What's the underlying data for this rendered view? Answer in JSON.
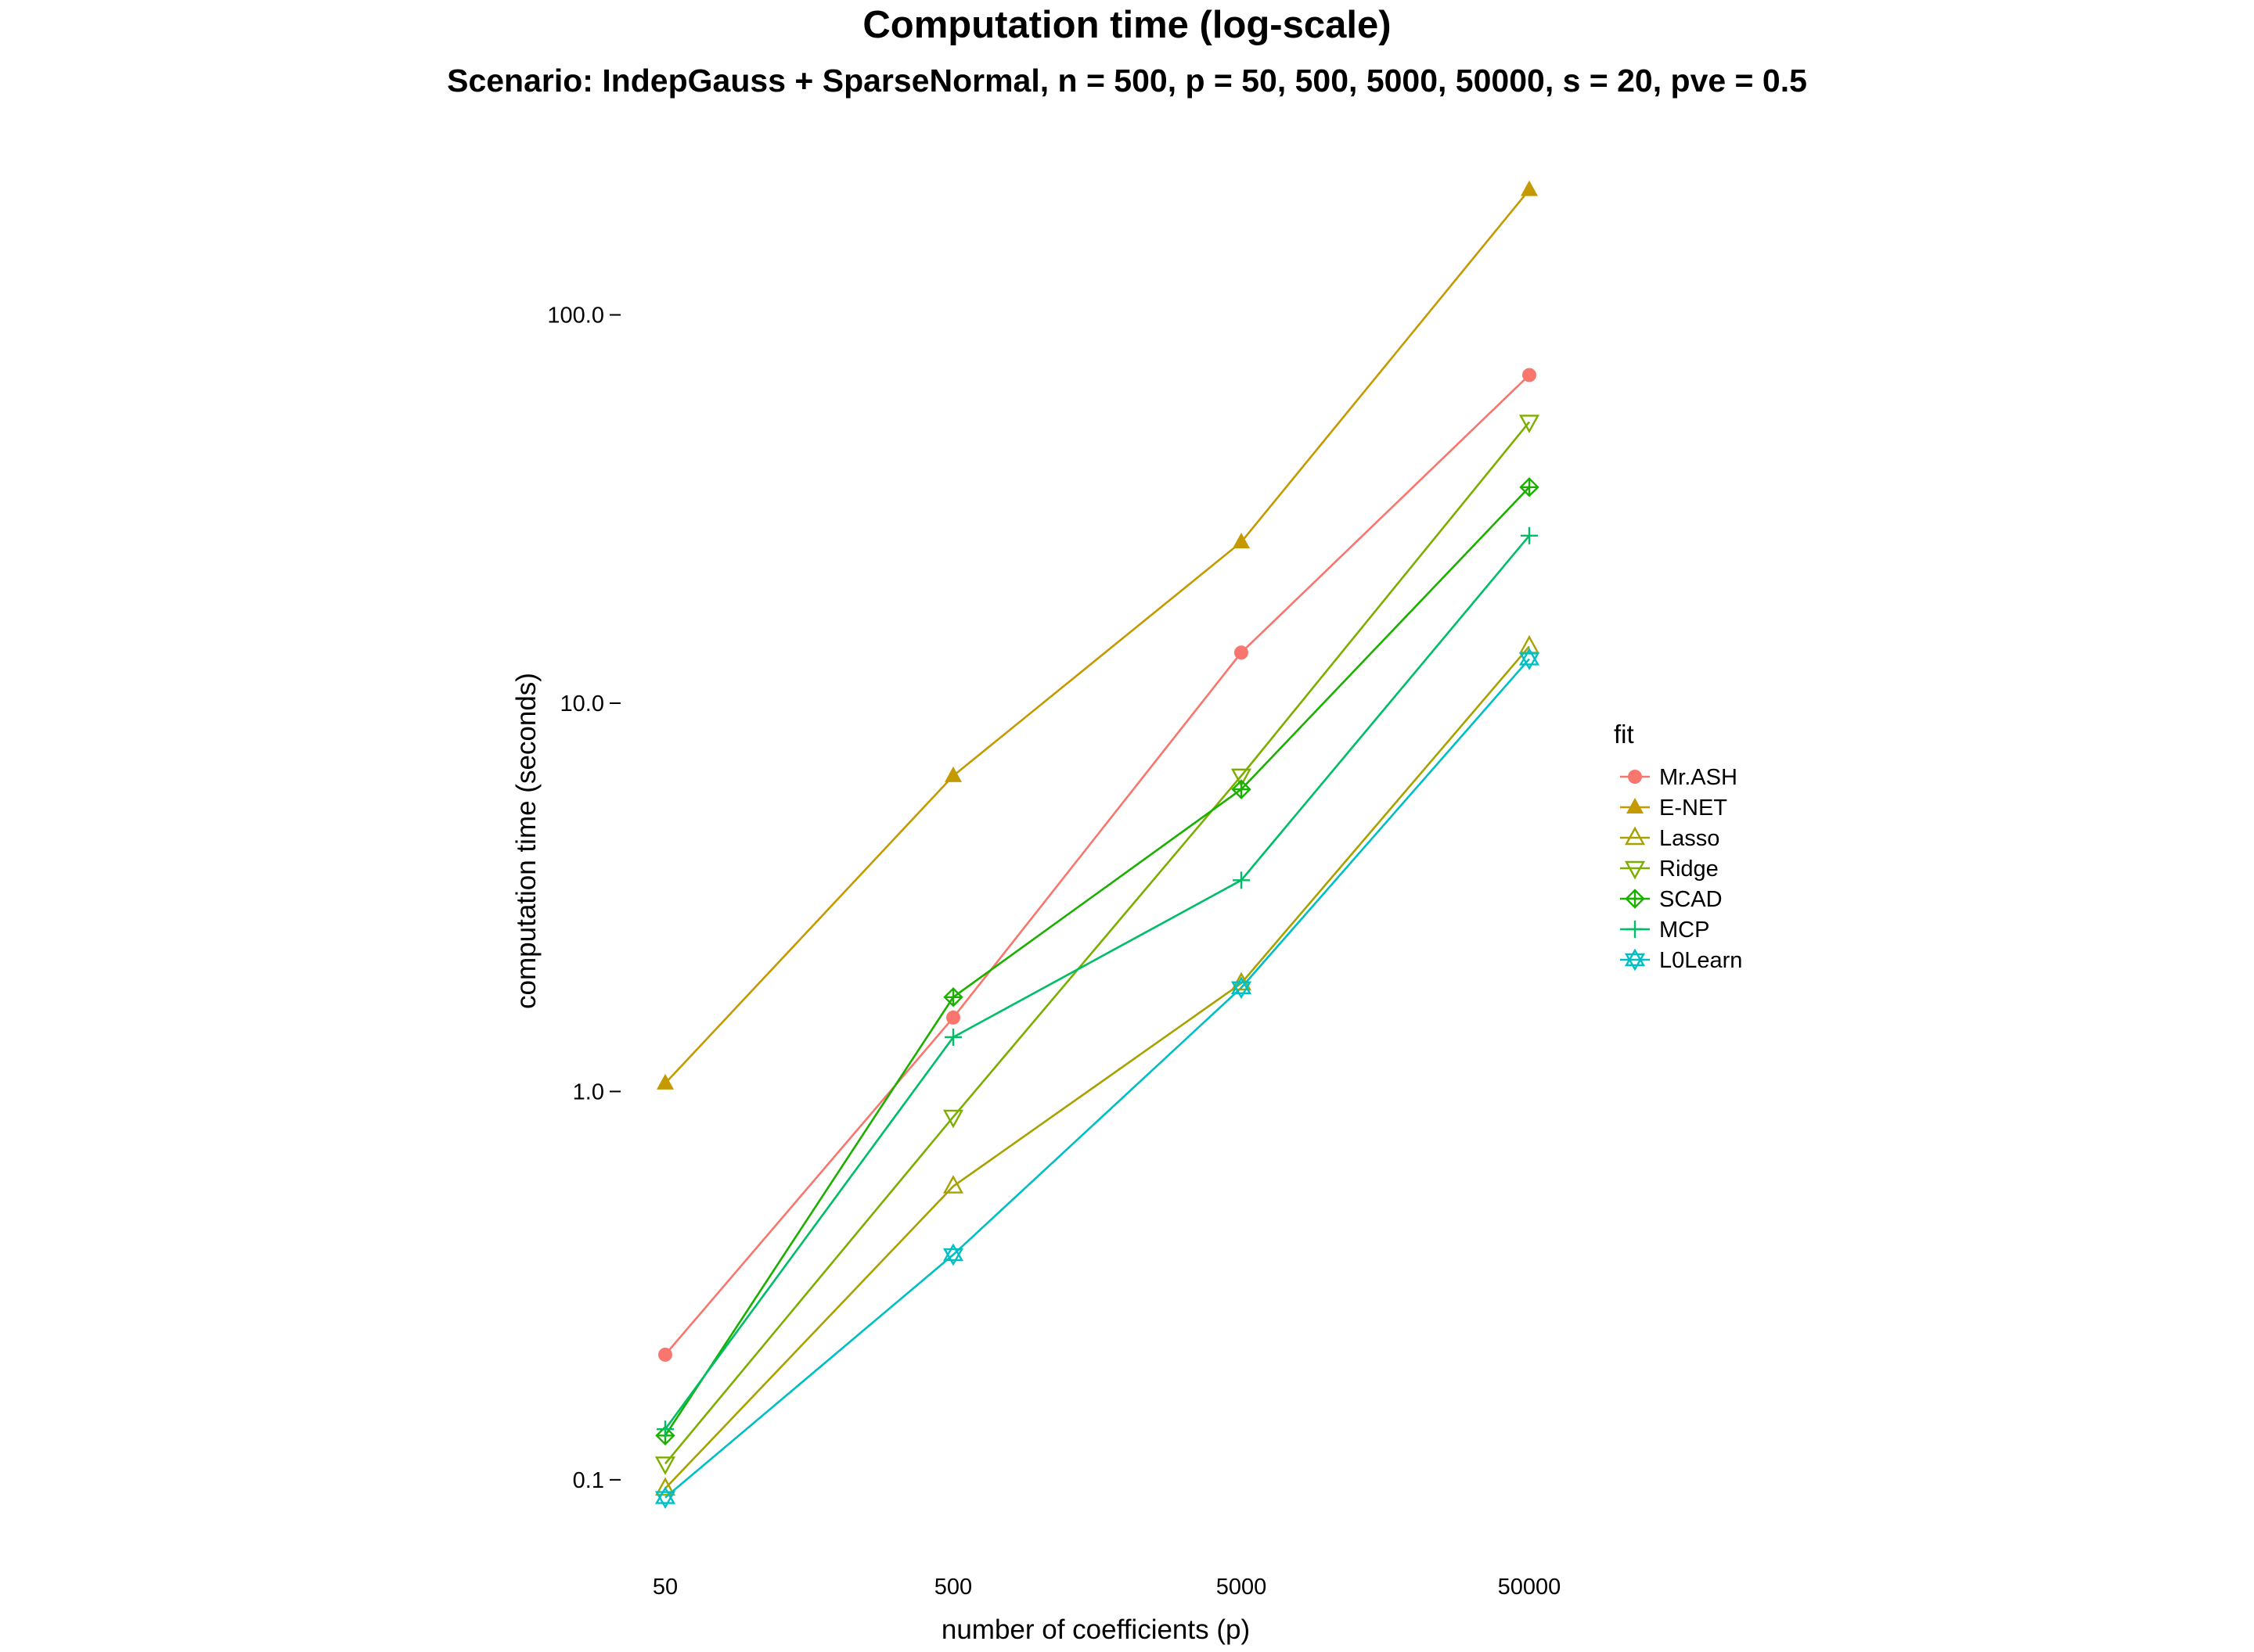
{
  "chart_data": {
    "type": "line",
    "title": "Computation time (log-scale)",
    "subtitle": "Scenario: IndepGauss + SparseNormal, n = 500, p = 50, 500, 5000, 50000, s = 20, pve = 0.5",
    "xlabel": "number of coefficients (p)",
    "ylabel": "computation time (seconds)",
    "x_scale": "log",
    "y_scale": "log",
    "x": [
      50,
      500,
      5000,
      50000
    ],
    "x_tick_labels": [
      "50",
      "500",
      "5000",
      "50000"
    ],
    "y_ticks": [
      0.1,
      1.0,
      10.0,
      100.0
    ],
    "y_tick_labels": [
      "0.1",
      "1.0",
      "10.0",
      "100.0"
    ],
    "ylim": [
      0.068,
      250
    ],
    "grid": false,
    "legend_title": "fit",
    "legend_position": "right",
    "series": [
      {
        "name": "Mr.ASH",
        "color": "#F8766D",
        "marker": "circle-filled",
        "values": [
          0.21,
          1.55,
          13.5,
          70
        ]
      },
      {
        "name": "E-NET",
        "color": "#C49A00",
        "marker": "triangle-filled",
        "values": [
          1.05,
          6.5,
          26,
          210
        ]
      },
      {
        "name": "Lasso",
        "color": "#A8A200",
        "marker": "triangle-open",
        "values": [
          0.095,
          0.57,
          1.9,
          14
        ]
      },
      {
        "name": "Ridge",
        "color": "#7CAE00",
        "marker": "triangle-down-open",
        "values": [
          0.11,
          0.86,
          6.5,
          53
        ]
      },
      {
        "name": "SCAD",
        "color": "#1BB000",
        "marker": "circle-plus",
        "values": [
          0.13,
          1.75,
          6.0,
          36
        ]
      },
      {
        "name": "MCP",
        "color": "#00BE67",
        "marker": "plus",
        "values": [
          0.135,
          1.38,
          3.5,
          27
        ]
      },
      {
        "name": "L0Learn",
        "color": "#00BFC4",
        "marker": "star-of-david",
        "values": [
          0.09,
          0.38,
          1.85,
          13
        ]
      }
    ]
  }
}
